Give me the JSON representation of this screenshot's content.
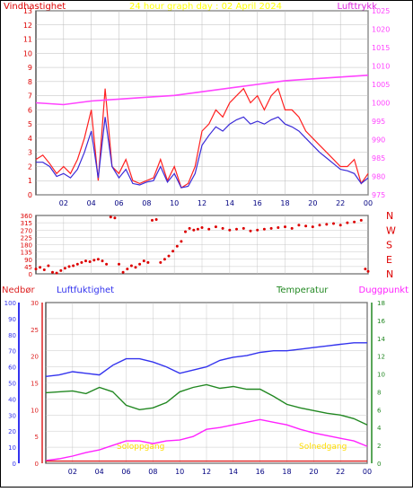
{
  "chart_data": [
    {
      "type": "line",
      "title": "24 hour graph day : 02 April 2024",
      "left_axis_label": "Vindhastighet",
      "right_axis_label": "Lufttrykk",
      "left_ylim": [
        0,
        13
      ],
      "right_ylim": [
        975,
        1025
      ],
      "left_ticks": [
        0,
        1,
        2,
        3,
        4,
        5,
        6,
        7,
        8,
        9,
        10,
        11,
        12,
        13
      ],
      "right_ticks": [
        975,
        980,
        985,
        990,
        995,
        1000,
        1005,
        1010,
        1015,
        1020,
        1025
      ],
      "x_ticks": [
        "02",
        "04",
        "06",
        "08",
        "10",
        "12",
        "14",
        "16",
        "18",
        "20",
        "22",
        "00"
      ],
      "grid": true,
      "series": [
        {
          "name": "Vindhastighet",
          "color": "#ff2020",
          "axis": "left",
          "x": [
            0,
            0.5,
            1,
            1.5,
            2,
            2.5,
            3,
            3.5,
            4,
            4.5,
            5,
            5.5,
            6,
            6.5,
            7,
            7.5,
            8,
            8.5,
            9,
            9.5,
            10,
            10.5,
            11,
            11.5,
            12,
            12.5,
            13,
            13.5,
            14,
            14.5,
            15,
            15.5,
            16,
            16.5,
            17,
            17.5,
            18,
            18.5,
            19,
            19.5,
            20,
            20.5,
            21,
            21.5,
            22,
            22.5,
            23,
            23.5,
            24
          ],
          "values": [
            2.5,
            2.8,
            2.2,
            1.5,
            2,
            1.5,
            2.5,
            4,
            6,
            1,
            7.5,
            2,
            1.5,
            2.5,
            1,
            0.8,
            1,
            1.2,
            2.5,
            1,
            2,
            0.5,
            0.8,
            2,
            4.5,
            5,
            6,
            5.5,
            6.5,
            7,
            7.5,
            6.5,
            7,
            6,
            7,
            7.5,
            6,
            6,
            5.5,
            4.5,
            4,
            3.5,
            3,
            2.5,
            2,
            2,
            2.5,
            0.8,
            1.5
          ]
        },
        {
          "name": "",
          "color": "#3a2ad8",
          "axis": "left",
          "x": [
            0,
            0.5,
            1,
            1.5,
            2,
            2.5,
            3,
            3.5,
            4,
            4.5,
            5,
            5.5,
            6,
            6.5,
            7,
            7.5,
            8,
            8.5,
            9,
            9.5,
            10,
            10.5,
            11,
            11.5,
            12,
            12.5,
            13,
            13.5,
            14,
            14.5,
            15,
            15.5,
            16,
            16.5,
            17,
            17.5,
            18,
            18.5,
            19,
            19.5,
            20,
            20.5,
            21,
            21.5,
            22,
            22.5,
            23,
            23.5,
            24
          ],
          "values": [
            2.3,
            2.3,
            2,
            1.3,
            1.5,
            1.2,
            1.8,
            3,
            4.5,
            1.2,
            5.5,
            2,
            1.2,
            1.8,
            0.8,
            0.7,
            0.9,
            1,
            2,
            0.9,
            1.5,
            0.5,
            0.6,
            1.5,
            3.5,
            4.2,
            4.8,
            4.5,
            5,
            5.3,
            5.5,
            5,
            5.2,
            5,
            5.3,
            5.5,
            5,
            4.8,
            4.5,
            4,
            3.5,
            3,
            2.6,
            2.2,
            1.8,
            1.7,
            1.5,
            0.8,
            1.2
          ]
        },
        {
          "name": "Lufttrykk",
          "color": "#ff44ff",
          "axis": "right",
          "x": [
            0,
            2,
            4,
            6,
            8,
            10,
            12,
            14,
            16,
            18,
            20,
            22,
            24
          ],
          "values": [
            1000,
            999.5,
            1000.5,
            1001,
            1001.5,
            1002,
            1003,
            1004,
            1005,
            1006,
            1006.5,
            1007,
            1007.5
          ]
        }
      ]
    },
    {
      "type": "scatter",
      "left_ylim": [
        0,
        360
      ],
      "left_ticks": [
        0,
        45,
        90,
        135,
        180,
        225,
        270,
        315,
        360
      ],
      "right_ticks": [
        "N",
        "W",
        "S",
        "E",
        "N"
      ],
      "series": [
        {
          "name": "",
          "color": "#dd0000",
          "x": [
            0,
            0.3,
            0.6,
            0.9,
            1.2,
            1.5,
            1.8,
            2.1,
            2.4,
            2.7,
            3,
            3.3,
            3.6,
            3.9,
            4.2,
            4.5,
            4.8,
            5.1,
            5.4,
            5.7,
            6,
            6.3,
            6.6,
            6.9,
            7.2,
            7.5,
            7.8,
            8.1,
            8.4,
            8.7,
            9,
            9.3,
            9.6,
            9.9,
            10.2,
            10.5,
            10.8,
            11.1,
            11.4,
            11.7,
            12,
            12.5,
            13,
            13.5,
            14,
            14.5,
            15,
            15.5,
            16,
            16.5,
            17,
            17.5,
            18,
            18.5,
            19,
            19.5,
            20,
            20.5,
            21,
            21.5,
            22,
            22.5,
            23,
            23.5,
            23.8,
            24
          ],
          "values": [
            30,
            40,
            25,
            50,
            10,
            5,
            20,
            35,
            45,
            50,
            60,
            70,
            80,
            75,
            85,
            90,
            80,
            60,
            350,
            345,
            60,
            10,
            30,
            50,
            40,
            60,
            80,
            70,
            330,
            335,
            70,
            90,
            110,
            140,
            170,
            200,
            260,
            280,
            270,
            275,
            285,
            275,
            290,
            280,
            270,
            275,
            280,
            265,
            270,
            275,
            280,
            285,
            290,
            280,
            300,
            295,
            290,
            300,
            305,
            310,
            300,
            315,
            320,
            330,
            30,
            15
          ]
        }
      ]
    },
    {
      "type": "line",
      "labels": {
        "nedbor": "Nedbør",
        "luftfuktighet": "Luftfuktighet",
        "temperatur": "Temperatur",
        "duggpunkt": "Duggpunkt",
        "solopp": "Soloppgang",
        "solned": "Solnedgang"
      },
      "axis1_ticks": [
        0,
        10,
        20,
        30,
        40,
        50,
        60,
        70,
        80,
        90,
        100
      ],
      "axis2_ticks": [
        0,
        5,
        10,
        15,
        20,
        25,
        30
      ],
      "axis3_ticks": [
        0,
        2,
        4,
        6,
        8,
        10,
        12,
        14,
        16,
        18
      ],
      "x_ticks": [
        "02",
        "04",
        "06",
        "08",
        "10",
        "12",
        "14",
        "16",
        "18",
        "20",
        "22",
        "00"
      ],
      "series": [
        {
          "name": "Luftfuktighet",
          "color": "#3333ee",
          "axis": "humidity",
          "x": [
            0,
            1,
            2,
            3,
            4,
            5,
            6,
            7,
            8,
            9,
            10,
            11,
            12,
            13,
            14,
            15,
            16,
            17,
            18,
            19,
            20,
            21,
            22,
            23,
            24
          ],
          "values": [
            54,
            55,
            57,
            56,
            55,
            61,
            65,
            65,
            63,
            60,
            56,
            58,
            60,
            64,
            66,
            67,
            69,
            70,
            70,
            71,
            72,
            73,
            74,
            75,
            75
          ]
        },
        {
          "name": "Temperatur",
          "color": "#228822",
          "axis": "temperature",
          "x": [
            0,
            1,
            2,
            3,
            4,
            5,
            6,
            7,
            8,
            9,
            10,
            11,
            12,
            13,
            14,
            15,
            16,
            17,
            18,
            19,
            20,
            21,
            22,
            23,
            24
          ],
          "values": [
            7.9,
            8,
            8.1,
            7.8,
            8.5,
            8,
            6.5,
            6,
            6.2,
            6.8,
            8,
            8.5,
            8.8,
            8.4,
            8.6,
            8.3,
            8.3,
            7.5,
            6.6,
            6.2,
            5.9,
            5.6,
            5.4,
            5.0,
            4.3
          ]
        },
        {
          "name": "Duggpunkt",
          "color": "#ff22ff",
          "axis": "temperature",
          "x": [
            0,
            1,
            2,
            3,
            4,
            5,
            6,
            7,
            8,
            9,
            10,
            11,
            12,
            13,
            14,
            15,
            16,
            17,
            18,
            19,
            20,
            21,
            22,
            23,
            24
          ],
          "values": [
            0.3,
            0.5,
            0.8,
            1.2,
            1.5,
            2,
            2.5,
            2.5,
            2.2,
            2.5,
            2.6,
            3,
            3.8,
            4,
            4.3,
            4.6,
            4.9,
            4.6,
            4.3,
            3.8,
            3.4,
            3.1,
            2.8,
            2.5,
            1.9
          ]
        },
        {
          "name": "Nedbør",
          "color": "#dd2222",
          "axis": "precipitation",
          "x": [
            0,
            24
          ],
          "values": [
            0.4,
            0.4
          ]
        }
      ]
    }
  ],
  "colors": {
    "frame": "#000000",
    "background": "#ffffff",
    "grid": "#bbbbbb",
    "top_title": "#ffff00",
    "precip_axis": "#dd2222",
    "humidity_axis": "#3333ee",
    "temp_axis": "#228822",
    "dew_axis": "#ff22ff",
    "sun_label": "#ffdd00",
    "direction": "#dd0000",
    "wind_axis": "#dd0000",
    "pressure_axis": "#ff44ff"
  }
}
